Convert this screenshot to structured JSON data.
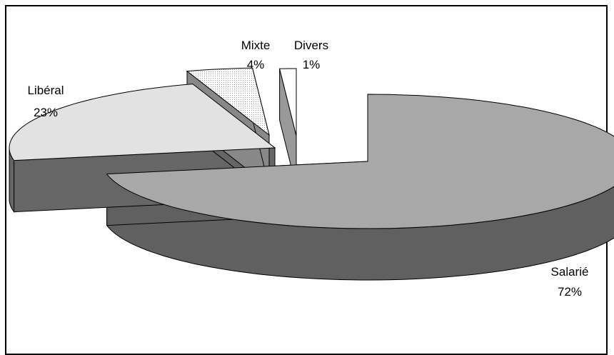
{
  "chart_data": {
    "type": "pie",
    "style": "3d-exploded",
    "categories": [
      "Salarié",
      "Libéral",
      "Mixte",
      "Divers"
    ],
    "values": [
      72,
      23,
      4,
      1
    ],
    "labels": [
      "72%",
      "23%",
      "4%",
      "1%"
    ],
    "title": "",
    "legend": "none",
    "colors": {
      "salarie_top": "#a8a8a8",
      "salarie_side": "#606060",
      "liberal_top": "#e2e2e2",
      "liberal_side": "#666666",
      "mixte_top": "#ededed",
      "mixte_side": "#888888",
      "divers_top": "#ffffff",
      "divers_side": "#999999"
    }
  }
}
